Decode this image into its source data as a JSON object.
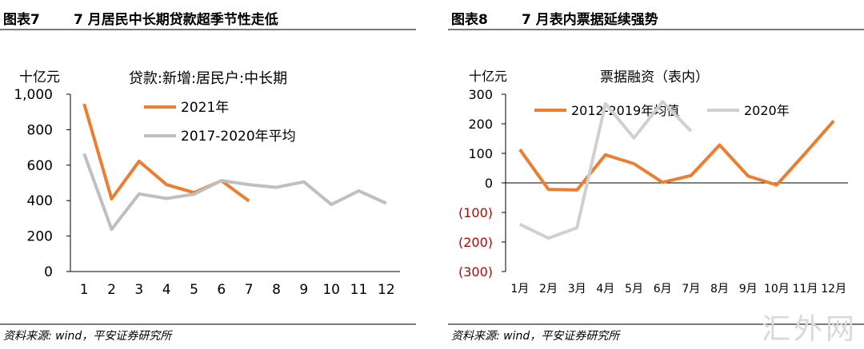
{
  "panels": [
    {
      "fig_no": "图表7",
      "fig_title": "7 月居民中长期贷款超季节性走低",
      "source": "资料来源: wind，平安证券研究所"
    },
    {
      "fig_no": "图表8",
      "fig_title": "7 月表内票据延续强势",
      "source": "资料来源: wind，平安证券研究所"
    }
  ],
  "watermark": "汇外网",
  "chart_data": [
    {
      "type": "line",
      "title": "贷款:新增:居民户:中长期",
      "unit_label": "十亿元",
      "categories": [
        "1",
        "2",
        "3",
        "4",
        "5",
        "6",
        "7",
        "8",
        "9",
        "10",
        "11",
        "12"
      ],
      "ylim": [
        0,
        1000
      ],
      "yticks": [
        0,
        200,
        400,
        600,
        800,
        1000
      ],
      "ytick_labels": [
        "0",
        "200",
        "400",
        "600",
        "800",
        "1,000"
      ],
      "grid": false,
      "legend_position": "top",
      "series": [
        {
          "name": "2021年",
          "color": "#ED7D31",
          "values": [
            945,
            410,
            622,
            490,
            445,
            512,
            398,
            null,
            null,
            null,
            null,
            null
          ]
        },
        {
          "name": "2017-2020年平均",
          "color": "#BFBFBF",
          "values": [
            665,
            238,
            438,
            412,
            436,
            513,
            490,
            475,
            506,
            378,
            455,
            385
          ]
        }
      ]
    },
    {
      "type": "line",
      "title": "票据融资（表内）",
      "unit_label": "十亿元",
      "categories": [
        "1月",
        "2月",
        "3月",
        "4月",
        "5月",
        "6月",
        "7月",
        "8月",
        "9月",
        "10月",
        "11月",
        "12月"
      ],
      "ylim": [
        -300,
        300
      ],
      "yticks": [
        -300,
        -200,
        -100,
        0,
        100,
        200,
        300
      ],
      "ytick_labels": [
        "(300)",
        "(200)",
        "(100)",
        "0",
        "100",
        "200",
        "300"
      ],
      "negative_tick_color": "#C00000",
      "grid": false,
      "legend_position": "top",
      "series": [
        {
          "name": "2012-2019年均值",
          "color": "#ED7D31",
          "values": [
            113,
            -22,
            -24,
            95,
            65,
            2,
            25,
            128,
            23,
            -7,
            100,
            210
          ]
        },
        {
          "name": "2020年",
          "color": "#D0D0D0",
          "values": [
            -140,
            -187,
            -152,
            268,
            152,
            275,
            175,
            null,
            null,
            null,
            null,
            null
          ]
        }
      ]
    }
  ]
}
